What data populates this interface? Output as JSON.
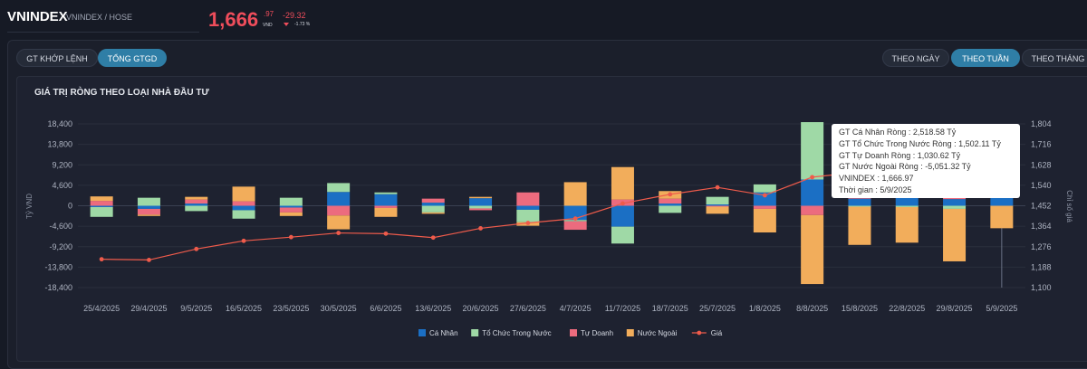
{
  "header": {
    "symbol": "VNINDEX",
    "exchange": "VNINDEX / HOSE",
    "price_int": "1,666",
    "price_dec": ".97",
    "price_unit": "VND",
    "change": "-29.32",
    "change_pct": "-1.73 %",
    "colors": {
      "down": "#ef4d5b"
    }
  },
  "toggles": {
    "left": [
      {
        "label": "GT KHỚP LỆNH",
        "active": false
      },
      {
        "label": "TỔNG GTGD",
        "active": true
      }
    ],
    "right": [
      {
        "label": "THEO NGÀY",
        "active": false
      },
      {
        "label": "THEO TUẦN",
        "active": true
      },
      {
        "label": "THEO THÁNG",
        "active": false
      }
    ]
  },
  "chart_title": "GIÁ TRỊ RÒNG THEO LOẠI NHÀ ĐẦU TƯ",
  "tooltip": {
    "lines": [
      "GT Cá Nhân Ròng  : 2,518.58 Tỷ",
      "GT Tổ Chức Trong Nước Ròng : 1,502.11 Tỷ",
      "GT Tự Doanh Ròng : 1,030.62 Tỷ",
      "GT Nước Ngoài Ròng : -5,051.32 Tỷ",
      "VNINDEX : 1,666.97",
      "Thời gian : 5/9/2025"
    ]
  },
  "chart_data": {
    "type": "bar",
    "stacked": true,
    "title": "GIÁ TRỊ RÒNG THEO LOẠI NHÀ ĐẦU TƯ",
    "ylabel": "Tỷ VND",
    "y2label": "Chỉ số giá",
    "ylim": [
      -18400,
      18400
    ],
    "y2lim": [
      1100,
      1804
    ],
    "yticks": [
      18400,
      13800,
      9200,
      4600,
      0,
      -4600,
      -9200,
      -13800,
      -18400
    ],
    "yticks_labels": [
      "18,400",
      "13,800",
      "9,200",
      "4,600",
      "0",
      "-4,600",
      "-9,200",
      "-13,800",
      "-18,400"
    ],
    "y2ticks": [
      1804,
      1716,
      1628,
      1540,
      1452,
      1364,
      1276,
      1188,
      1100
    ],
    "y2ticks_labels": [
      "1,804",
      "1,716",
      "1,628",
      "1,540",
      "1,452",
      "1,364",
      "1,276",
      "1,188",
      "1,100"
    ],
    "categories": [
      "25/4/2025",
      "29/4/2025",
      "9/5/2025",
      "16/5/2025",
      "23/5/2025",
      "30/5/2025",
      "6/6/2025",
      "13/6/2025",
      "20/6/2025",
      "27/6/2025",
      "4/7/2025",
      "11/7/2025",
      "18/7/2025",
      "25/7/2025",
      "1/8/2025",
      "8/8/2025",
      "15/8/2025",
      "22/8/2025",
      "29/8/2025",
      "5/9/2025"
    ],
    "series": [
      {
        "name": "Cá Nhân",
        "color": "#1b6fc4",
        "values": [
          -300,
          -700,
          500,
          -1000,
          -400,
          3100,
          2600,
          700,
          1700,
          -900,
          -3200,
          -4700,
          500,
          300,
          3000,
          5900,
          1600,
          1800,
          1500,
          2518.58
        ]
      },
      {
        "name": "Tổ Chức Trong Nước",
        "color": "#9fd9a6",
        "values": [
          -2200,
          1800,
          -1200,
          -1900,
          1800,
          2000,
          400,
          -1500,
          -600,
          -2800,
          -300,
          -3800,
          -1600,
          1700,
          1800,
          12900,
          -200,
          -300,
          -700,
          1502.11
        ]
      },
      {
        "name": "Tự Doanh",
        "color": "#ec6b7e",
        "values": [
          1100,
          -1300,
          900,
          1000,
          -1100,
          -2200,
          -500,
          900,
          -400,
          3000,
          -1900,
          1400,
          1100,
          -200,
          -700,
          -2100,
          400,
          300,
          300,
          1030.62
        ]
      },
      {
        "name": "Nước Ngoài",
        "color": "#f2ad5b",
        "values": [
          1000,
          -300,
          600,
          3300,
          -800,
          -3100,
          -2000,
          -300,
          300,
          -800,
          5300,
          7300,
          1700,
          -1600,
          -5300,
          -15500,
          -8600,
          -8000,
          -11800,
          -5051.32
        ]
      }
    ],
    "line": {
      "name": "Giá",
      "color": "#ef5b4b",
      "values": [
        1222,
        1219,
        1266,
        1301,
        1317,
        1335,
        1332,
        1315,
        1355,
        1378,
        1397,
        1462,
        1501,
        1531,
        1497,
        1575,
        1597,
        1633,
        1682,
        1666.97
      ]
    },
    "legend_position": "bottom",
    "grid": true,
    "highlighted": "5/9/2025"
  }
}
